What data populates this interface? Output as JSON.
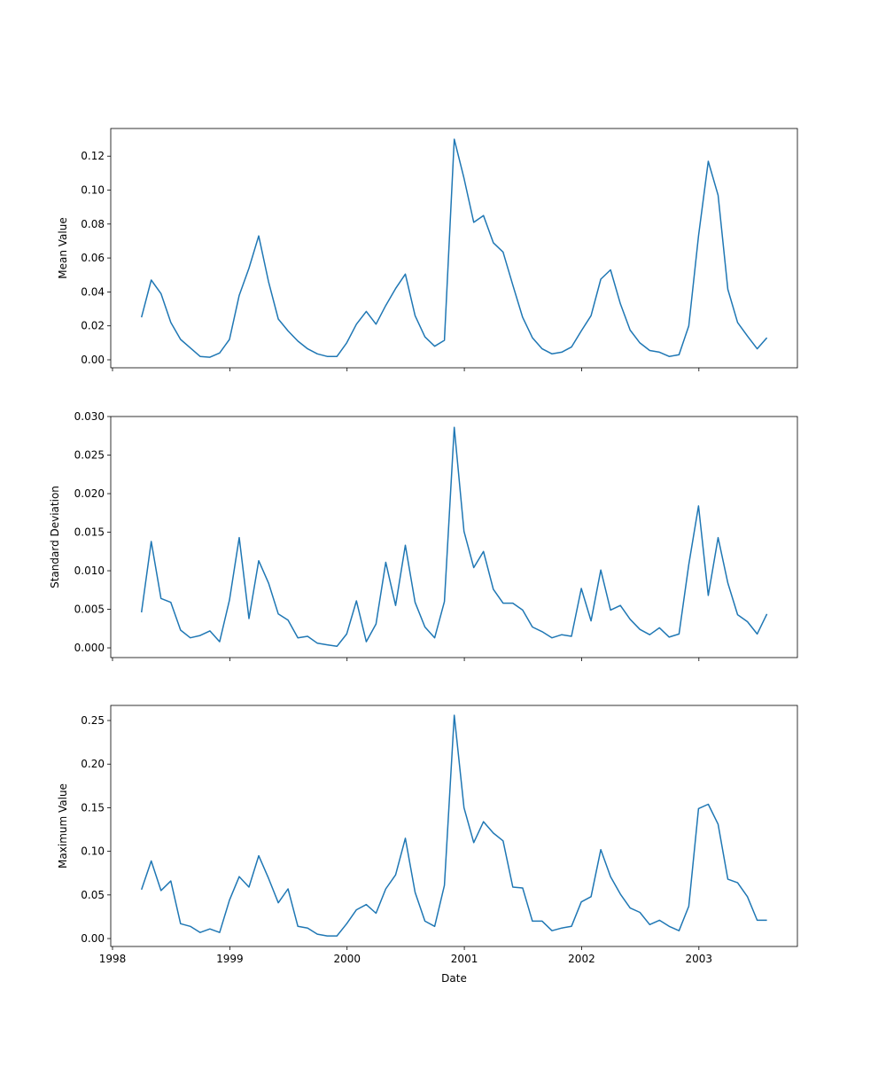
{
  "chart_data": [
    {
      "type": "line",
      "ylabel": "Mean Value",
      "xlabel": "",
      "color": "#1f77b4",
      "ylim": [
        -0.0047,
        0.1363
      ],
      "yticks": [
        0.0,
        0.02,
        0.04,
        0.06,
        0.08,
        0.1,
        0.12
      ],
      "ytick_labels": [
        "0.00",
        "0.02",
        "0.04",
        "0.06",
        "0.08",
        "0.10",
        "0.12"
      ],
      "values": [
        0.025,
        0.047,
        0.039,
        0.022,
        0.012,
        0.007,
        0.002,
        0.0015,
        0.004,
        0.012,
        0.038,
        0.054,
        0.073,
        0.046,
        0.024,
        0.017,
        0.011,
        0.0065,
        0.0035,
        0.002,
        0.002,
        0.01,
        0.021,
        0.0285,
        0.021,
        0.032,
        0.042,
        0.0505,
        0.026,
        0.0135,
        0.008,
        0.0115,
        0.13,
        0.107,
        0.081,
        0.085,
        0.069,
        0.0635,
        0.044,
        0.025,
        0.013,
        0.0065,
        0.0035,
        0.0045,
        0.0075,
        0.017,
        0.026,
        0.0475,
        0.053,
        0.033,
        0.0175,
        0.01,
        0.0055,
        0.0045,
        0.002,
        0.003,
        0.02,
        0.073,
        0.117,
        0.097,
        0.0415,
        0.022,
        0.014,
        0.0065,
        0.013
      ]
    },
    {
      "type": "line",
      "ylabel": "Standard Deviation",
      "xlabel": "",
      "color": "#1f77b4",
      "ylim": [
        -0.00126,
        0.03
      ],
      "yticks": [
        0.0,
        0.005,
        0.01,
        0.015,
        0.02,
        0.025,
        0.03
      ],
      "ytick_labels": [
        "0.000",
        "0.005",
        "0.010",
        "0.015",
        "0.020",
        "0.025",
        "0.030"
      ],
      "values": [
        0.0046,
        0.0138,
        0.0064,
        0.0059,
        0.0023,
        0.0013,
        0.0016,
        0.0022,
        0.0008,
        0.0062,
        0.0143,
        0.0038,
        0.0113,
        0.0084,
        0.0044,
        0.0036,
        0.0013,
        0.0015,
        0.0006,
        0.0004,
        0.0002,
        0.0018,
        0.0061,
        0.0008,
        0.0031,
        0.0111,
        0.0055,
        0.0133,
        0.0059,
        0.0027,
        0.0013,
        0.006,
        0.0286,
        0.0151,
        0.0104,
        0.0125,
        0.0076,
        0.0058,
        0.0058,
        0.0049,
        0.0027,
        0.0021,
        0.0013,
        0.0017,
        0.0015,
        0.0077,
        0.0035,
        0.0101,
        0.0049,
        0.0055,
        0.0037,
        0.0024,
        0.0017,
        0.0026,
        0.0014,
        0.0018,
        0.0108,
        0.0184,
        0.0068,
        0.0143,
        0.0084,
        0.0043,
        0.0034,
        0.0018,
        0.0044
      ]
    },
    {
      "type": "line",
      "ylabel": "Maximum Value",
      "xlabel": "Date",
      "color": "#1f77b4",
      "ylim": [
        -0.0091,
        0.2673
      ],
      "yticks": [
        0.0,
        0.05,
        0.1,
        0.15,
        0.2,
        0.25
      ],
      "ytick_labels": [
        "0.00",
        "0.05",
        "0.10",
        "0.15",
        "0.20",
        "0.25"
      ],
      "values": [
        0.056,
        0.089,
        0.055,
        0.066,
        0.017,
        0.014,
        0.007,
        0.011,
        0.007,
        0.044,
        0.071,
        0.059,
        0.095,
        0.069,
        0.041,
        0.057,
        0.014,
        0.012,
        0.005,
        0.003,
        0.003,
        0.017,
        0.033,
        0.039,
        0.029,
        0.057,
        0.073,
        0.115,
        0.053,
        0.02,
        0.014,
        0.061,
        0.256,
        0.15,
        0.11,
        0.134,
        0.121,
        0.112,
        0.059,
        0.058,
        0.02,
        0.02,
        0.009,
        0.012,
        0.014,
        0.042,
        0.048,
        0.102,
        0.071,
        0.051,
        0.035,
        0.03,
        0.016,
        0.021,
        0.014,
        0.009,
        0.037,
        0.149,
        0.154,
        0.131,
        0.068,
        0.064,
        0.048,
        0.021,
        0.021
      ]
    }
  ],
  "x_axis": {
    "start_month": "1998-04",
    "frequency": "monthly",
    "xlim": [
      1997.985,
      2003.84
    ],
    "xticks": [
      1998,
      1999,
      2000,
      2001,
      2002,
      2003
    ],
    "xtick_labels": [
      "1998",
      "1999",
      "2000",
      "2001",
      "2002",
      "2003"
    ]
  }
}
